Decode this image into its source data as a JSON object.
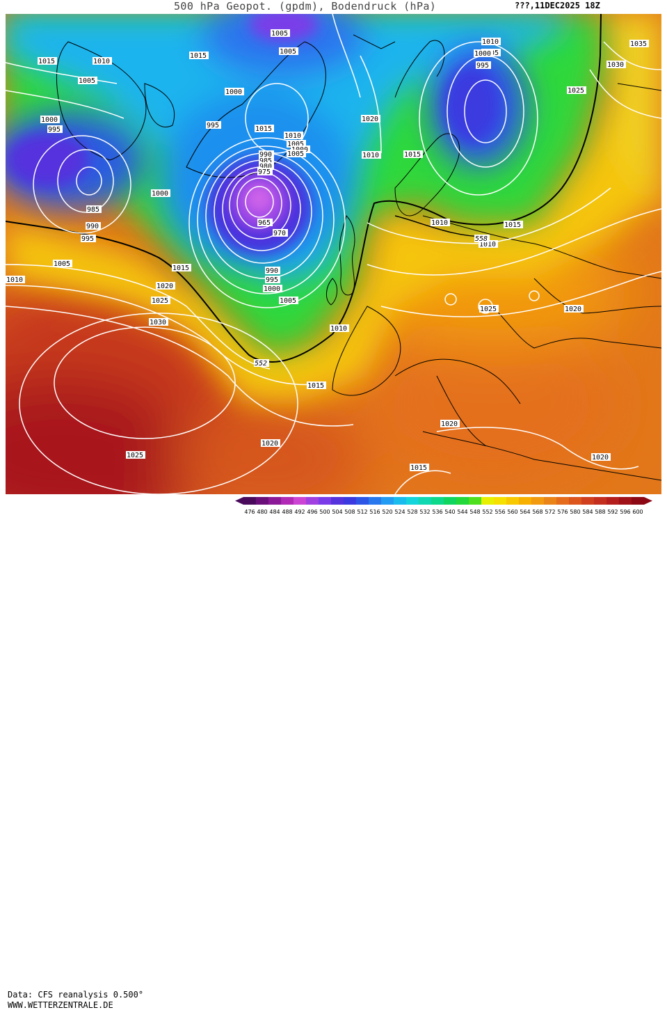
{
  "header": {
    "title": "500 hPa Geopot. (gpdm), Bodendruck (hPa)",
    "datetime": "???,11DEC2025 18Z"
  },
  "footer": {
    "source": "Data: CFS reanalysis 0.500°",
    "website": "WWW.WETTERZENTRALE.DE"
  },
  "map": {
    "pressure_labels": [
      "1005",
      "1015",
      "1010",
      "1005",
      "1005",
      "1015",
      "1010",
      "1005",
      "1000",
      "995",
      "995",
      "1000",
      "1000",
      "1015",
      "1020",
      "1010",
      "1005",
      "1000",
      "995",
      "990",
      "985",
      "980",
      "975",
      "1000",
      "1010",
      "1015",
      "1005",
      "1010",
      "985",
      "990",
      "995",
      "965",
      "970",
      "1005",
      "1010",
      "1015",
      "1020",
      "1025",
      "1030",
      "990",
      "995",
      "1000",
      "1005",
      "1010",
      "1015",
      "1020",
      "1010",
      "1015",
      "1020",
      "1025",
      "1020",
      "1020",
      "1015",
      "1025",
      "1020",
      "1035",
      "1030",
      "1025"
    ],
    "contour_labels": [
      "552",
      "558"
    ]
  },
  "legend": {
    "values": [
      "476",
      "480",
      "484",
      "488",
      "492",
      "496",
      "500",
      "504",
      "508",
      "512",
      "516",
      "520",
      "524",
      "528",
      "532",
      "536",
      "540",
      "544",
      "548",
      "552",
      "556",
      "560",
      "564",
      "568",
      "572",
      "576",
      "580",
      "584",
      "588",
      "592",
      "596",
      "600"
    ],
    "colors": [
      "#4a0a5c",
      "#6a0f7a",
      "#8c1a98",
      "#b02ab6",
      "#cc44d4",
      "#a040e0",
      "#7a3ce8",
      "#5533dd",
      "#3a3ae0",
      "#2e56e6",
      "#2a78ee",
      "#229cf2",
      "#1abcee",
      "#14d4dc",
      "#10d8b0",
      "#0ed88a",
      "#10d660",
      "#22d83a",
      "#4ee01e",
      "#e6f000",
      "#f6e000",
      "#f8c800",
      "#f8b000",
      "#f29a10",
      "#ea8418",
      "#e46c1c",
      "#dc561e",
      "#d0401e",
      "#c42e1e",
      "#b41e1c",
      "#a01218",
      "#8c0814"
    ]
  }
}
